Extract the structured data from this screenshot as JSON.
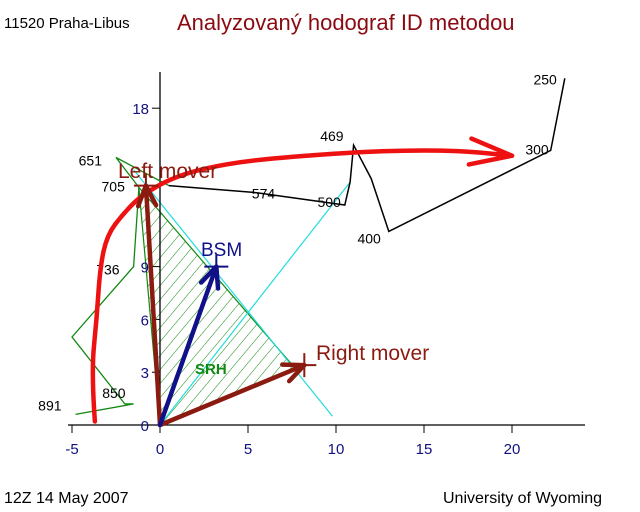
{
  "header": {
    "station": "11520  Praha-Libus",
    "title": "Analyzovaný hodograf ID metodou"
  },
  "footer": {
    "date": "12Z 14 May 2007",
    "credit": "University of Wyoming"
  },
  "colors": {
    "hodograph": "#000000",
    "smoothed_profile": "#ee1111",
    "storm_motion": "#8b1a10",
    "bsm": "#101088",
    "srh": "#118811",
    "axis_labels": "#111180",
    "guide_lines": "#22dddd"
  },
  "chart_data": {
    "type": "hodograph",
    "title": "Analyzovaný hodograf ID metodou",
    "xlim": [
      -5,
      24
    ],
    "ylim": [
      0,
      20
    ],
    "x_ticks": [
      -5,
      0,
      5,
      10,
      15,
      20
    ],
    "y_ticks": [
      0,
      3,
      6,
      9,
      18
    ],
    "hodograph": [
      {
        "x": -4.8,
        "y": 0.6,
        "label": "891"
      },
      {
        "x": -1.5,
        "y": 1.2,
        "label": "850"
      },
      {
        "x": -2.0,
        "y": 1.2,
        "label": ""
      },
      {
        "x": -5.0,
        "y": 5.0,
        "label": ""
      },
      {
        "x": -1.5,
        "y": 9.0,
        "label": "736"
      },
      {
        "x": -1.2,
        "y": 13.5,
        "label": "705"
      },
      {
        "x": -2.5,
        "y": 15.2,
        "label": "651"
      },
      {
        "x": 0.5,
        "y": 13.6,
        "label": ""
      },
      {
        "x": 5.5,
        "y": 13.2,
        "label": "574"
      },
      {
        "x": 10.5,
        "y": 12.5,
        "label": "500"
      },
      {
        "x": 10.8,
        "y": 13.8,
        "label": ""
      },
      {
        "x": 11.0,
        "y": 15.9,
        "label": "469"
      },
      {
        "x": 12.0,
        "y": 14.0,
        "label": ""
      },
      {
        "x": 13.0,
        "y": 11.0,
        "label": "400"
      },
      {
        "x": 22.2,
        "y": 15.6,
        "label": "300"
      },
      {
        "x": 23.0,
        "y": 19.7,
        "label": "250"
      }
    ],
    "smoothed_profile": [
      [
        -3.7,
        0.2
      ],
      [
        -3.9,
        3.0
      ],
      [
        -3.6,
        6.0
      ],
      [
        -3.4,
        9.0
      ],
      [
        -3.0,
        10.8
      ],
      [
        -2.1,
        12.0
      ],
      [
        -1.0,
        13.1
      ],
      [
        1.0,
        14.2
      ],
      [
        4.0,
        14.9
      ],
      [
        8.0,
        15.3
      ],
      [
        13.0,
        15.6
      ],
      [
        17.0,
        15.6
      ],
      [
        20.0,
        15.3
      ]
    ],
    "srh_triangle": [
      [
        0.0,
        0.0
      ],
      [
        -1.2,
        13.5
      ],
      [
        7.7,
        3.2
      ]
    ],
    "storm_motions": [
      {
        "name": "Left mover",
        "x": -0.8,
        "y": 13.6
      },
      {
        "name": "Right mover",
        "x": 8.2,
        "y": 3.4
      },
      {
        "name": "BSM",
        "x": 3.2,
        "y": 9.0
      }
    ],
    "guide_lines": [
      [
        [
          -1.5,
          14.5
        ],
        [
          9.8,
          0.5
        ]
      ],
      [
        [
          0.0,
          0.0
        ],
        [
          10.8,
          13.8
        ]
      ]
    ],
    "annotations": {
      "srh": "SRH",
      "bsm": "BSM",
      "left": "Left mover",
      "right": "Right mover"
    }
  }
}
